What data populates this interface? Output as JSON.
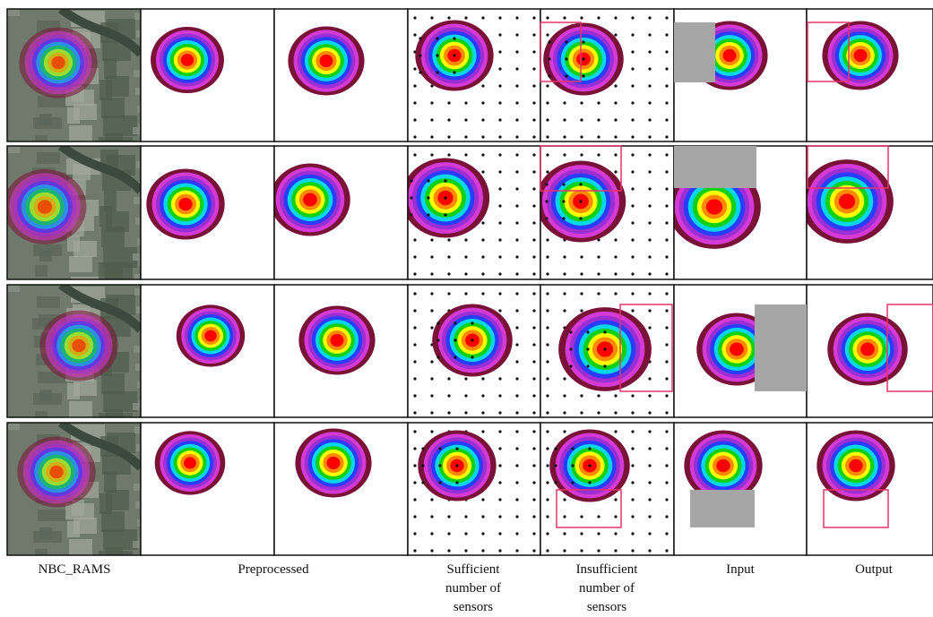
{
  "figure": {
    "columns": [
      {
        "lines": [
          "NBC_RAMS"
        ]
      },
      {
        "lines": [
          "Preprocessed"
        ]
      },
      {
        "lines": [
          "Sufficient",
          "number of",
          "sensors"
        ]
      },
      {
        "lines": [
          "Insufficient",
          "number of",
          "sensors"
        ]
      },
      {
        "lines": [
          "Input"
        ]
      },
      {
        "lines": [
          "Output"
        ]
      }
    ]
  }
}
